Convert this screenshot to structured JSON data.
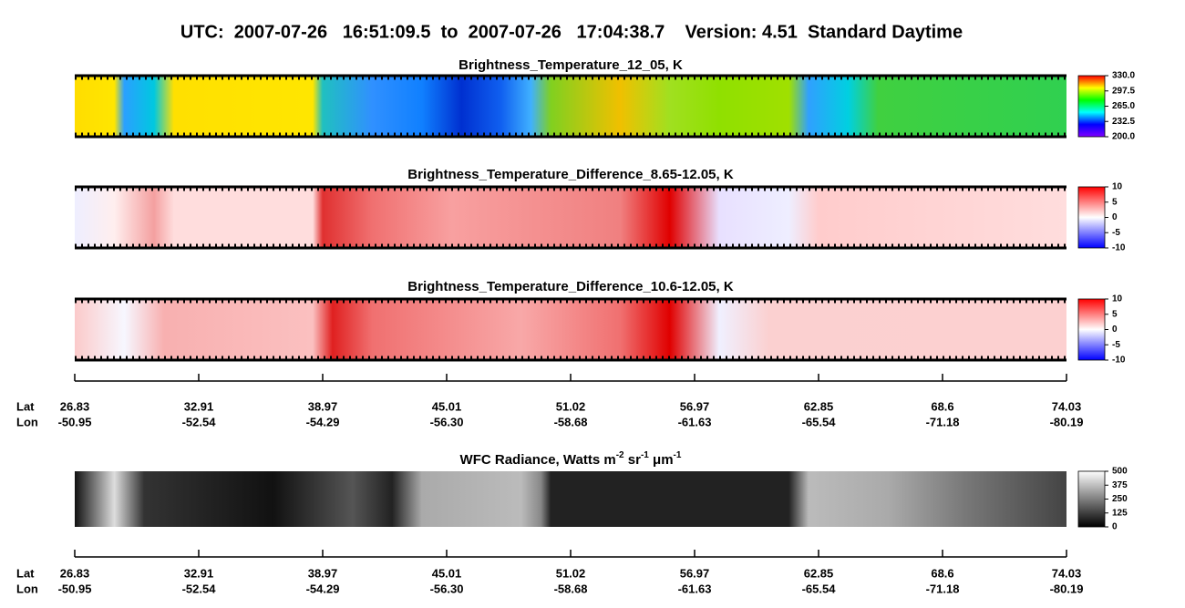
{
  "title": "UTC:  2007-07-26   16:51:09.5  to  2007-07-26   17:04:38.7    Version: 4.51  Standard Daytime",
  "chart_data": [
    {
      "type": "heatmap",
      "title_parts": [
        {
          "text": "Brightness_Temperature_12_05, K"
        }
      ],
      "colormap": [
        "#8000ff",
        "#0000ff",
        "#00ffff",
        "#00ff00",
        "#ffff00",
        "#ff0000"
      ],
      "clim": [
        200,
        330
      ],
      "cticks": [
        {
          "value": 330,
          "label": "330.0"
        },
        297.5,
        {
          "value": 265,
          "label": "265.0"
        },
        232.5,
        {
          "value": 200,
          "label": "200.0"
        }
      ]
    },
    {
      "type": "heatmap",
      "title_parts": [
        {
          "text": "Brightness_Temperature_Difference_8.65-12.05, K"
        }
      ],
      "colormap": [
        "#0000ff",
        "#ffffff",
        "#ff0000"
      ],
      "clim": [
        -10,
        10
      ],
      "cticks": [
        10,
        5,
        0,
        -5,
        -10
      ]
    },
    {
      "type": "heatmap",
      "title_parts": [
        {
          "text": "Brightness_Temperature_Difference_10.6-12.05, K"
        }
      ],
      "colormap": [
        "#0000ff",
        "#ffffff",
        "#ff0000"
      ],
      "clim": [
        -10,
        10
      ],
      "cticks": [
        10,
        5,
        0,
        -5,
        -10
      ]
    },
    {
      "type": "heatmap",
      "title_parts": [
        {
          "text": "WFC Radiance, Watts m"
        },
        {
          "text": "-2",
          "sup": true
        },
        {
          "text": " sr"
        },
        {
          "text": "-1",
          "sup": true
        },
        {
          "text": " μm"
        },
        {
          "text": "-1",
          "sup": true
        }
      ],
      "colormap": [
        "#000000",
        "#ffffff"
      ],
      "clim": [
        0,
        500
      ],
      "cticks": [
        500,
        375,
        250,
        125,
        0
      ]
    }
  ],
  "axis": {
    "rows": [
      {
        "name": "Lat",
        "values": [
          26.83,
          32.91,
          38.97,
          45.01,
          51.02,
          56.97,
          62.85,
          68.6,
          74.03
        ]
      },
      {
        "name": "Lon",
        "values": [
          -50.95,
          -52.54,
          -54.29,
          {
            "value": -56.3,
            "label": "-56.30"
          },
          -58.68,
          -61.63,
          -65.54,
          -71.18,
          -80.19
        ]
      }
    ]
  }
}
